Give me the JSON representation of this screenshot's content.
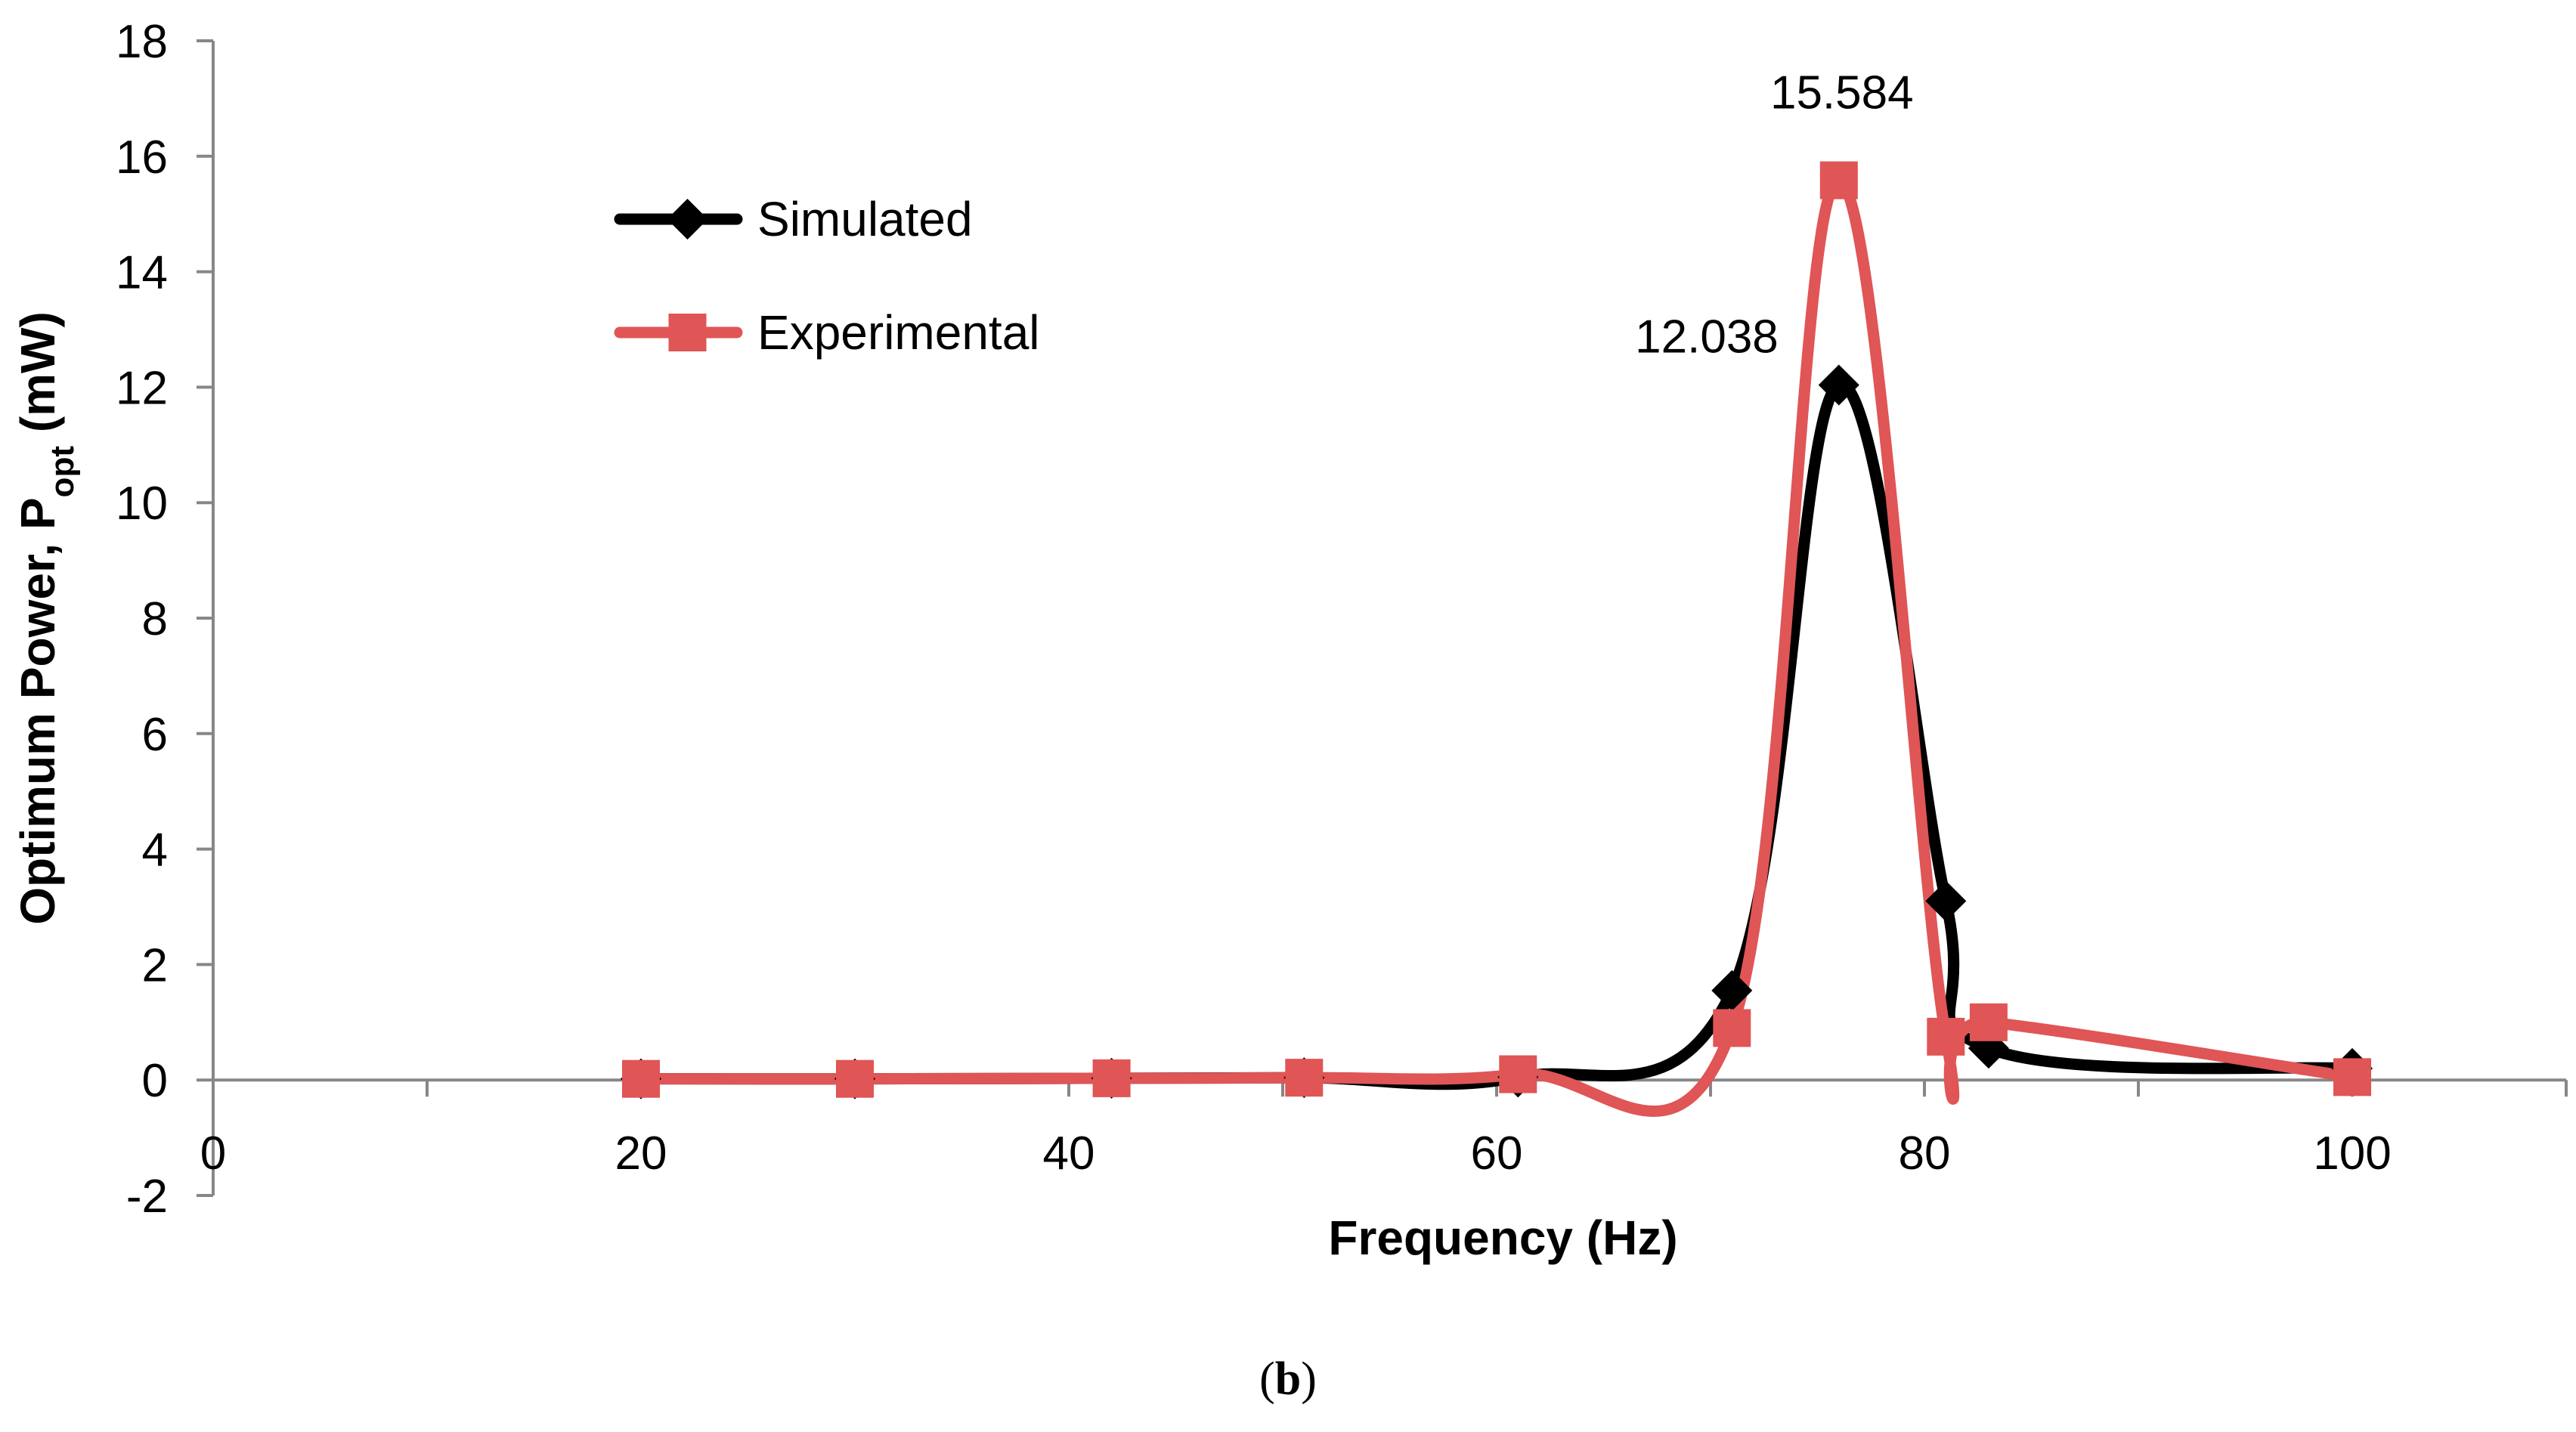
{
  "chart_data": {
    "type": "line",
    "title": "",
    "xlabel": "Frequency (Hz)",
    "ylabel_main": "Optimum Power, P",
    "ylabel_sub": "opt",
    "ylabel_unit": " (mW)",
    "xlim": [
      0,
      110
    ],
    "ylim": [
      -2,
      18
    ],
    "x_ticks": [
      0,
      20,
      40,
      60,
      80,
      100
    ],
    "y_ticks": [
      -2,
      0,
      2,
      4,
      6,
      8,
      10,
      12,
      14,
      16,
      18
    ],
    "grid": false,
    "legend_position": "top-left",
    "series": [
      {
        "name": "Simulated",
        "color": "#000000",
        "marker": "diamond",
        "x": [
          20,
          30,
          42,
          51,
          61,
          71,
          76,
          81,
          83,
          100
        ],
        "y": [
          0.02,
          0.02,
          0.03,
          0.04,
          0.05,
          1.55,
          12.038,
          3.1,
          0.55,
          0.2
        ]
      },
      {
        "name": "Experimental",
        "color": "#e05555",
        "marker": "square",
        "x": [
          20,
          30,
          42,
          51,
          61,
          71,
          76,
          81,
          83,
          100
        ],
        "y": [
          0.02,
          0.02,
          0.03,
          0.04,
          0.1,
          0.9,
          15.584,
          0.75,
          1.0,
          0.05
        ]
      }
    ],
    "annotations": [
      {
        "text": "15.584",
        "x": 76,
        "y": 15.584,
        "series": "Experimental"
      },
      {
        "text": "12.038",
        "x": 76,
        "y": 12.038,
        "series": "Simulated"
      }
    ]
  },
  "caption": {
    "open": "(",
    "letter": "b",
    "close": ")"
  }
}
